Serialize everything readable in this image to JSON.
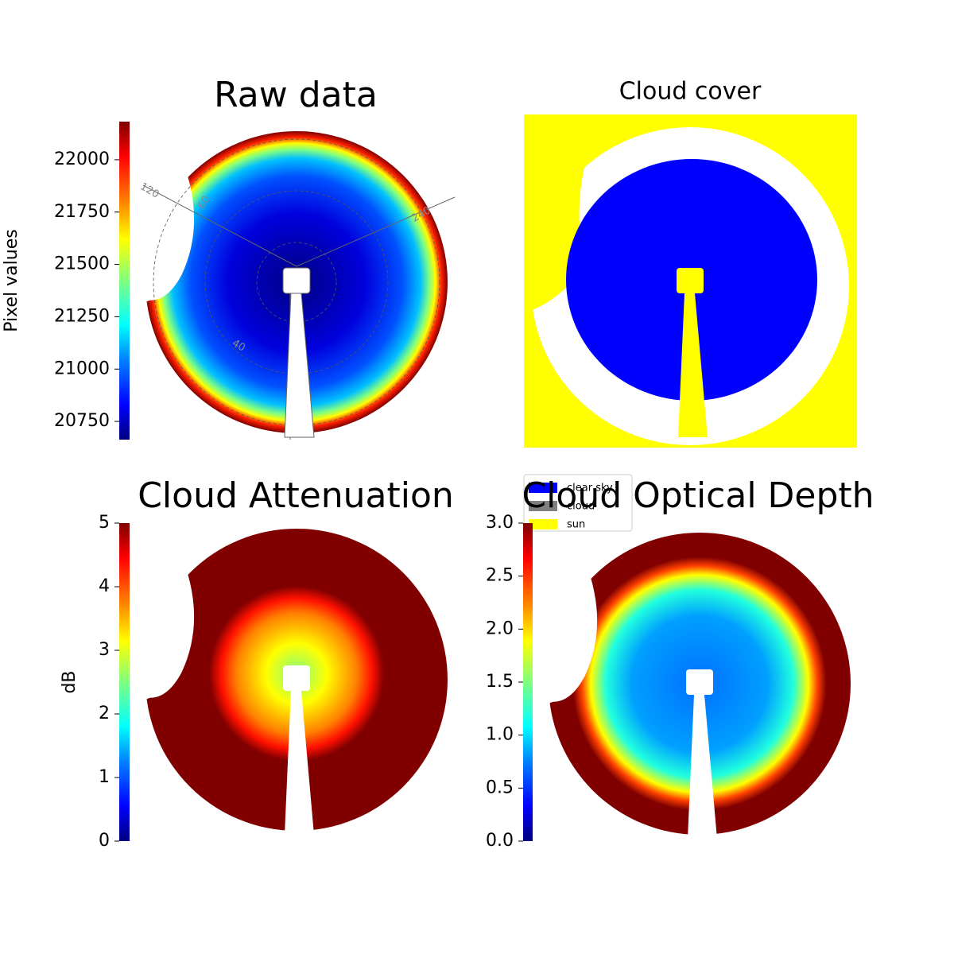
{
  "chart_data": [
    {
      "type": "image",
      "title": "Raw data",
      "colormap": "jet",
      "colorbar_label": "Pixel values",
      "clim": [
        20663,
        22182
      ],
      "cticks": [
        20750,
        21000,
        21250,
        21500,
        21750,
        22000
      ],
      "annotations": [
        "120",
        "60",
        "240",
        "40"
      ]
    },
    {
      "type": "classification",
      "title": "Cloud cover",
      "legend": [
        {
          "name": "clear sky",
          "color": "#0000ff"
        },
        {
          "name": "cloud",
          "color": "#808080"
        },
        {
          "name": "sun",
          "color": "#ffff00"
        }
      ]
    },
    {
      "type": "image",
      "title": "Cloud Attenuation",
      "colormap": "jet",
      "colorbar_label": "dB",
      "clim": [
        0,
        5
      ],
      "cticks": [
        0,
        1,
        2,
        3,
        4,
        5
      ]
    },
    {
      "type": "image",
      "title": "Cloud Optical Depth",
      "colormap": "jet",
      "clim": [
        0,
        3
      ],
      "cticks": [
        {
          "value": 0,
          "label": "0.0"
        },
        0.5,
        {
          "value": 1,
          "label": "1.0"
        },
        1.5,
        {
          "value": 2,
          "label": "2.0"
        },
        2.5,
        {
          "value": 3,
          "label": "3.0"
        }
      ]
    }
  ]
}
